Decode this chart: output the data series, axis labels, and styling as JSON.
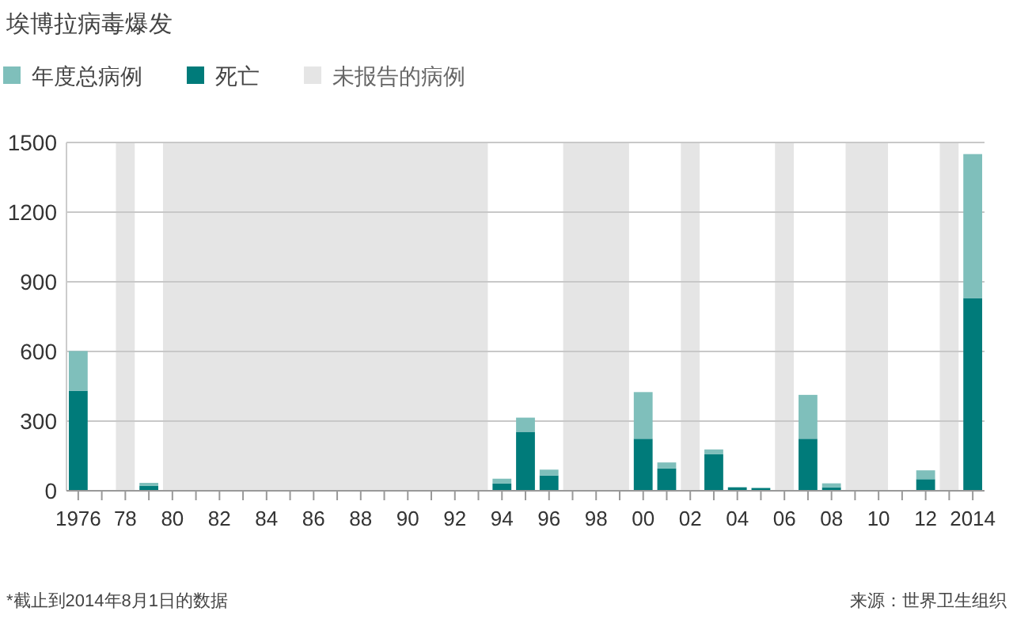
{
  "chart_data": {
    "type": "bar",
    "title": "埃博拉病毒爆发",
    "stacked": true,
    "x": [
      1976,
      1979,
      1994,
      1995,
      1996,
      2000,
      2001,
      2003,
      2004,
      2005,
      2007,
      2008,
      2012,
      2014
    ],
    "series": [
      {
        "name": "死亡",
        "color": "#007b7a",
        "values": [
          431,
          22,
          31,
          254,
          66,
          224,
          96,
          157,
          15,
          12,
          224,
          15,
          50,
          830
        ]
      },
      {
        "name": "年度总病例",
        "color": "#7fbfbb",
        "values": [
          171,
          12,
          21,
          61,
          25,
          201,
          26,
          21,
          null,
          null,
          189,
          17,
          38,
          620
        ]
      }
    ],
    "xlim": [
      1975.5,
      2014.5
    ],
    "xticks": [
      {
        "value": 1976,
        "label": "1976"
      },
      {
        "value": 1977,
        "label": null
      },
      {
        "value": 1978,
        "label": "78"
      },
      {
        "value": 1979,
        "label": null
      },
      {
        "value": 1980,
        "label": "80"
      },
      {
        "value": 1981,
        "label": null
      },
      {
        "value": 1982,
        "label": "82"
      },
      {
        "value": 1983,
        "label": null
      },
      {
        "value": 1984,
        "label": "84"
      },
      {
        "value": 1985,
        "label": null
      },
      {
        "value": 1986,
        "label": "86"
      },
      {
        "value": 1987,
        "label": null
      },
      {
        "value": 1988,
        "label": "88"
      },
      {
        "value": 1989,
        "label": null
      },
      {
        "value": 1990,
        "label": "90"
      },
      {
        "value": 1991,
        "label": null
      },
      {
        "value": 1992,
        "label": "92"
      },
      {
        "value": 1993,
        "label": null
      },
      {
        "value": 1994,
        "label": "94"
      },
      {
        "value": 1995,
        "label": null
      },
      {
        "value": 1996,
        "label": "96"
      },
      {
        "value": 1997,
        "label": null
      },
      {
        "value": 1998,
        "label": "98"
      },
      {
        "value": 1999,
        "label": null
      },
      {
        "value": 2000,
        "label": "00"
      },
      {
        "value": 2001,
        "label": null
      },
      {
        "value": 2002,
        "label": "02"
      },
      {
        "value": 2003,
        "label": null
      },
      {
        "value": 2004,
        "label": "04"
      },
      {
        "value": 2005,
        "label": null
      },
      {
        "value": 2006,
        "label": "06"
      },
      {
        "value": 2007,
        "label": null
      },
      {
        "value": 2008,
        "label": "08"
      },
      {
        "value": 2009,
        "label": null
      },
      {
        "value": 2010,
        "label": "10"
      },
      {
        "value": 2011,
        "label": null
      },
      {
        "value": 2012,
        "label": "12"
      },
      {
        "value": 2013,
        "label": null
      },
      {
        "value": 2014,
        "label": "2014"
      }
    ],
    "ylim": [
      0,
      1500
    ],
    "yticks": [
      0,
      300,
      600,
      900,
      1200,
      1500
    ],
    "bands": [
      {
        "axis": "x",
        "from": 1977.6,
        "to": 1978.4,
        "label": "未报告的病例",
        "color": "#e5e5e5"
      },
      {
        "axis": "x",
        "from": 1979.6,
        "to": 1993.4,
        "color": "#e5e5e5"
      },
      {
        "axis": "x",
        "from": 1996.6,
        "to": 1999.4,
        "color": "#e5e5e5"
      },
      {
        "axis": "x",
        "from": 2001.6,
        "to": 2002.4,
        "color": "#e5e5e5"
      },
      {
        "axis": "x",
        "from": 2005.6,
        "to": 2006.4,
        "color": "#e5e5e5"
      },
      {
        "axis": "x",
        "from": 2008.6,
        "to": 2010.4,
        "color": "#e5e5e5"
      },
      {
        "axis": "x",
        "from": 2012.6,
        "to": 2013.4,
        "color": "#e5e5e5"
      }
    ],
    "grid": "y",
    "legend": "top left",
    "annotations": [
      "*截止到2014年8月1日的数据",
      "来源：世界卫生组织"
    ]
  }
}
